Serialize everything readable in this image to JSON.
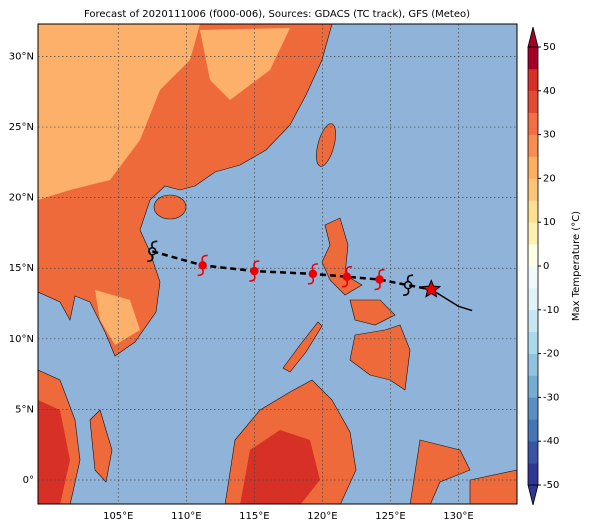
{
  "chart_data": {
    "type": "map",
    "title": "Forecast of 2020111006 (f000-006), Sources: GDACS (TC track), GFS (Meteo)",
    "xlim": [
      99.1,
      134.3
    ],
    "ylim": [
      -1.7,
      32.3
    ],
    "xticks": [
      {
        "value": 105,
        "label": "105°E"
      },
      {
        "value": 110,
        "label": "110°E"
      },
      {
        "value": 115,
        "label": "115°E"
      },
      {
        "value": 120,
        "label": "120°E"
      },
      {
        "value": 125,
        "label": "125°E"
      },
      {
        "value": 130,
        "label": "130°E"
      }
    ],
    "yticks": [
      {
        "value": 0,
        "label": "0°"
      },
      {
        "value": 5,
        "label": "5°N"
      },
      {
        "value": 10,
        "label": "10°N"
      },
      {
        "value": 15,
        "label": "15°N"
      },
      {
        "value": 20,
        "label": "20°N"
      },
      {
        "value": 25,
        "label": "25°N"
      },
      {
        "value": 30,
        "label": "30°N"
      }
    ],
    "grid": true,
    "track": {
      "lon": [
        107.5,
        111.2,
        115.0,
        119.3,
        121.8,
        124.2,
        126.3,
        128.0,
        130.0,
        131.0
      ],
      "lat": [
        16.2,
        15.2,
        14.8,
        14.6,
        14.4,
        14.2,
        13.8,
        13.5,
        12.3,
        12.0
      ]
    },
    "colorbar": {
      "label": "Max Temperature (°C)",
      "lim": [
        -50,
        50
      ],
      "ticks": [
        -50,
        -40,
        -30,
        -20,
        -10,
        0,
        10,
        20,
        30,
        40,
        50
      ],
      "colors": [
        "#313695",
        "#3a54a4",
        "#4575b4",
        "#5b8fc2",
        "#74add1",
        "#91c3de",
        "#abd9e9",
        "#c7e6f0",
        "#e0f3f8",
        "#f2fafc",
        "#ffffe6",
        "#fff1b0",
        "#fee090",
        "#fdc376",
        "#fdae61",
        "#f88d52",
        "#f46d43",
        "#e34a33",
        "#d73027",
        "#a50026"
      ]
    }
  }
}
